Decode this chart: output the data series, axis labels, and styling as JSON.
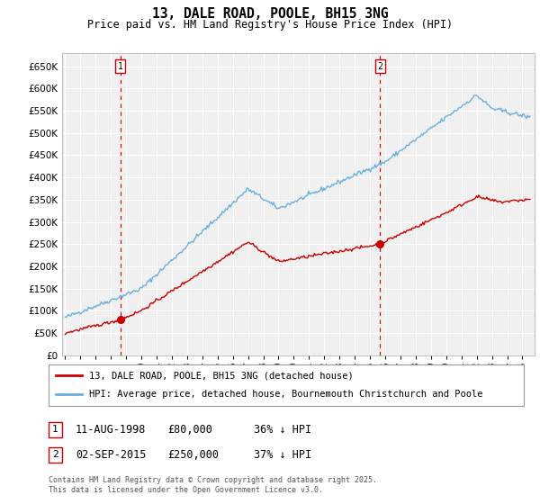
{
  "title": "13, DALE ROAD, POOLE, BH15 3NG",
  "subtitle": "Price paid vs. HM Land Registry's House Price Index (HPI)",
  "legend_label_red": "13, DALE ROAD, POOLE, BH15 3NG (detached house)",
  "legend_label_blue": "HPI: Average price, detached house, Bournemouth Christchurch and Poole",
  "footnote": "Contains HM Land Registry data © Crown copyright and database right 2025.\nThis data is licensed under the Open Government Licence v3.0.",
  "sale1_date": "11-AUG-1998",
  "sale1_price": "£80,000",
  "sale1_note": "36% ↓ HPI",
  "sale2_date": "02-SEP-2015",
  "sale2_price": "£250,000",
  "sale2_note": "37% ↓ HPI",
  "red_color": "#cc0000",
  "blue_color": "#6ab0e0",
  "marker1_year": 1998.62,
  "marker1_value": 80000,
  "marker2_year": 2015.67,
  "marker2_value": 250000,
  "ylim": [
    0,
    680000
  ],
  "xlim_start": 1994.8,
  "xlim_end": 2025.8,
  "yticks": [
    0,
    50000,
    100000,
    150000,
    200000,
    250000,
    300000,
    350000,
    400000,
    450000,
    500000,
    550000,
    600000,
    650000
  ],
  "xticks": [
    1995,
    1996,
    1997,
    1998,
    1999,
    2000,
    2001,
    2002,
    2003,
    2004,
    2005,
    2006,
    2007,
    2008,
    2009,
    2010,
    2011,
    2012,
    2013,
    2014,
    2015,
    2016,
    2017,
    2018,
    2019,
    2020,
    2021,
    2022,
    2023,
    2024,
    2025
  ],
  "bg_color": "#f0f0f0",
  "grid_color": "#ffffff"
}
